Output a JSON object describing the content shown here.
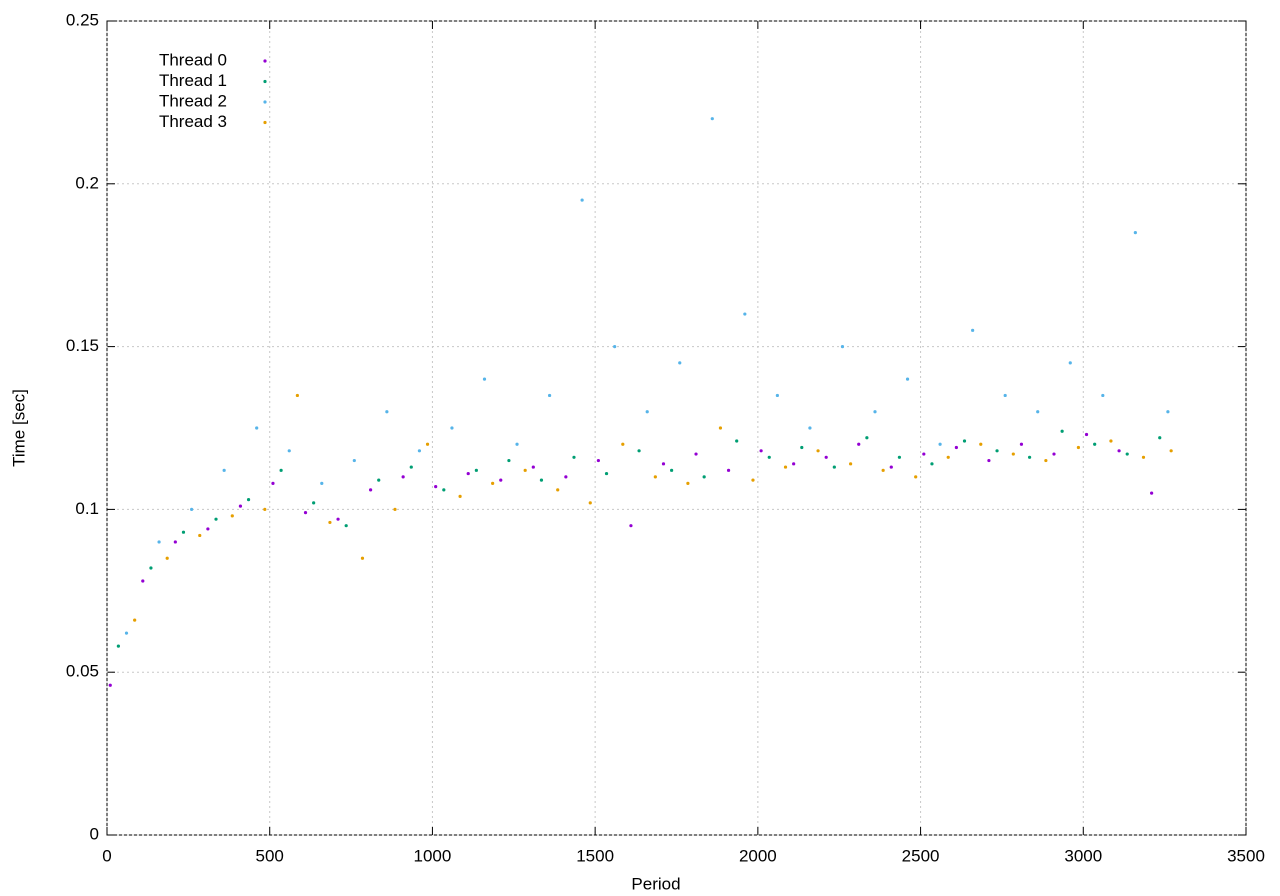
{
  "chart_data": {
    "type": "scatter",
    "xlabel": "Period",
    "ylabel": "Time [sec]",
    "xlim": [
      0,
      3500
    ],
    "xticks": [
      0,
      500,
      1000,
      1500,
      2000,
      2500,
      3000,
      3500
    ],
    "ylim": [
      0,
      0.25
    ],
    "yticks": [
      0,
      0.05,
      0.1,
      0.15,
      0.2,
      0.25
    ],
    "grid": true,
    "legend": "upper left",
    "series": [
      {
        "name": "Thread 0",
        "color": "#9400d3",
        "x": [
          10,
          110,
          210,
          310,
          410,
          510,
          610,
          710,
          810,
          910,
          1010,
          1110,
          1210,
          1310,
          1410,
          1510,
          1610,
          1710,
          1810,
          1910,
          2010,
          2110,
          2210,
          2310,
          2410,
          2510,
          2610,
          2710,
          2810,
          2910,
          3010,
          3110,
          3210
        ],
        "values": [
          0.046,
          0.078,
          0.09,
          0.094,
          0.101,
          0.108,
          0.099,
          0.097,
          0.106,
          0.11,
          0.107,
          0.111,
          0.109,
          0.113,
          0.11,
          0.115,
          0.095,
          0.114,
          0.117,
          0.112,
          0.118,
          0.114,
          0.116,
          0.12,
          0.113,
          0.117,
          0.119,
          0.115,
          0.12,
          0.117,
          0.123,
          0.118,
          0.105
        ]
      },
      {
        "name": "Thread 1",
        "color": "#009e73",
        "x": [
          35,
          135,
          235,
          335,
          435,
          535,
          635,
          735,
          835,
          935,
          1035,
          1135,
          1235,
          1335,
          1435,
          1535,
          1635,
          1735,
          1835,
          1935,
          2035,
          2135,
          2235,
          2335,
          2435,
          2535,
          2635,
          2735,
          2835,
          2935,
          3035,
          3135,
          3235
        ],
        "values": [
          0.058,
          0.082,
          0.093,
          0.097,
          0.103,
          0.112,
          0.102,
          0.095,
          0.109,
          0.113,
          0.106,
          0.112,
          0.115,
          0.109,
          0.116,
          0.111,
          0.118,
          0.112,
          0.11,
          0.121,
          0.116,
          0.119,
          0.113,
          0.122,
          0.116,
          0.114,
          0.121,
          0.118,
          0.116,
          0.124,
          0.12,
          0.117,
          0.122
        ]
      },
      {
        "name": "Thread 2",
        "color": "#56b4e9",
        "x": [
          60,
          160,
          260,
          360,
          460,
          560,
          660,
          760,
          860,
          960,
          1060,
          1160,
          1260,
          1360,
          1460,
          1560,
          1660,
          1760,
          1860,
          1960,
          2060,
          2160,
          2260,
          2360,
          2460,
          2560,
          2660,
          2760,
          2860,
          2960,
          3060,
          3160,
          3260
        ],
        "values": [
          0.062,
          0.09,
          0.1,
          0.112,
          0.125,
          0.118,
          0.108,
          0.115,
          0.13,
          0.118,
          0.125,
          0.14,
          0.12,
          0.135,
          0.195,
          0.15,
          0.13,
          0.145,
          0.22,
          0.16,
          0.135,
          0.125,
          0.15,
          0.13,
          0.14,
          0.12,
          0.155,
          0.135,
          0.13,
          0.145,
          0.135,
          0.185,
          0.13
        ]
      },
      {
        "name": "Thread 3",
        "color": "#e69f00",
        "x": [
          85,
          185,
          285,
          385,
          485,
          585,
          685,
          785,
          885,
          985,
          1085,
          1185,
          1285,
          1385,
          1485,
          1585,
          1685,
          1785,
          1885,
          1985,
          2085,
          2185,
          2285,
          2385,
          2485,
          2585,
          2685,
          2785,
          2885,
          2985,
          3085,
          3185,
          3270
        ],
        "values": [
          0.066,
          0.085,
          0.092,
          0.098,
          0.1,
          0.135,
          0.096,
          0.085,
          0.1,
          0.12,
          0.104,
          0.108,
          0.112,
          0.106,
          0.102,
          0.12,
          0.11,
          0.108,
          0.125,
          0.109,
          0.113,
          0.118,
          0.114,
          0.112,
          0.11,
          0.116,
          0.12,
          0.117,
          0.115,
          0.119,
          0.121,
          0.116,
          0.118
        ]
      }
    ]
  }
}
